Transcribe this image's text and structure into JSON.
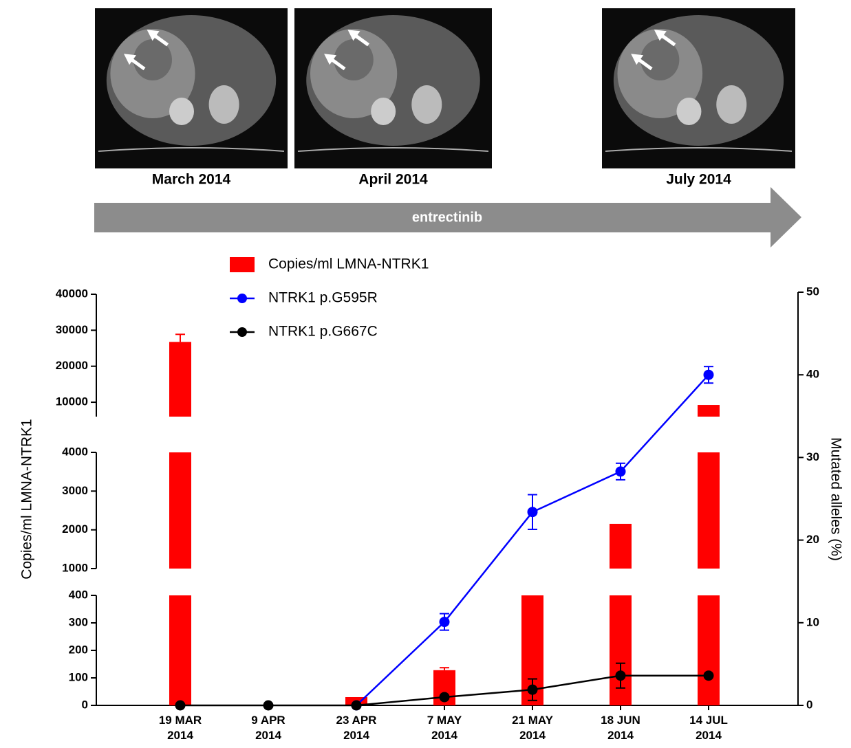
{
  "images": [
    {
      "caption": "March 2014"
    },
    {
      "caption": "April 2014"
    },
    {
      "caption": "July 2014"
    }
  ],
  "treatment": "entrectinib",
  "chart_data": {
    "type": "bar",
    "categories": [
      "19 MAR 2014",
      "9 APR 2014",
      "23 APR 2014",
      "7 MAY 2014",
      "21 MAY 2014",
      "18 JUN 2014",
      "14 JUL 2014"
    ],
    "ylabel": "Copies/ml LMNA-NTRK1",
    "y2label": "Mutated alleles (%)",
    "y_segments": [
      {
        "ylim": [
          0,
          400
        ],
        "yticks": [
          0,
          100,
          200,
          300,
          400
        ]
      },
      {
        "ylim": [
          1000,
          4000
        ],
        "yticks": [
          1000,
          2000,
          3000,
          4000
        ]
      },
      {
        "ylim": [
          6000,
          40000
        ],
        "yticks": [
          10000,
          20000,
          30000,
          40000
        ]
      }
    ],
    "y2lim": [
      0,
      50
    ],
    "y2ticks": [
      0,
      10,
      20,
      30,
      40,
      50
    ],
    "series": [
      {
        "name": "Copies/ml LMNA-NTRK1",
        "type": "bar",
        "color": "#ff0000",
        "values": [
          26760,
          0,
          30,
          128,
          700,
          2155,
          9240
        ],
        "errors": [
          2100,
          null,
          null,
          9,
          null,
          null,
          null
        ]
      },
      {
        "name": "NTRK1 p.G595R",
        "type": "line",
        "axis": "y2",
        "color": "#0000ff",
        "values": [
          null,
          null,
          0,
          10.1,
          23.4,
          28.3,
          40
        ],
        "errors": [
          null,
          null,
          null,
          1,
          2.1,
          1,
          1
        ]
      },
      {
        "name": "NTRK1 p.G667C",
        "type": "line",
        "axis": "y2",
        "color": "#000000",
        "values": [
          0,
          0,
          0,
          1,
          1.9,
          3.6,
          3.6
        ],
        "errors": [
          null,
          null,
          null,
          null,
          1.3,
          1.5,
          null
        ]
      }
    ]
  }
}
